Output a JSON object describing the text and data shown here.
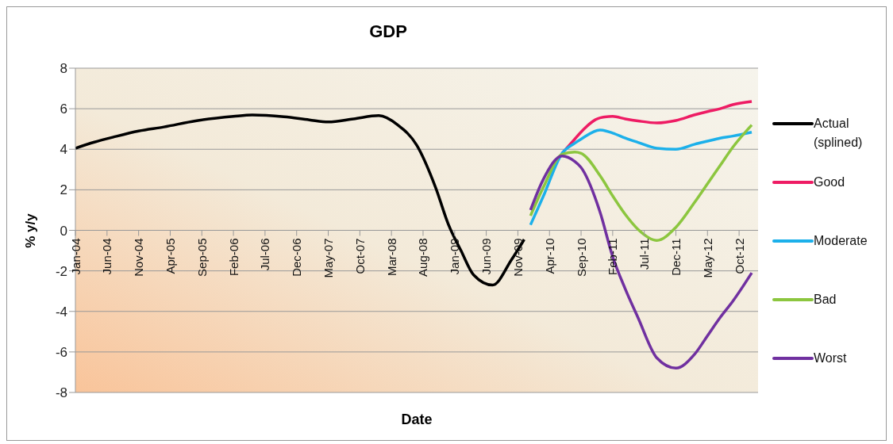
{
  "chart_data": {
    "type": "line",
    "title": "GDP",
    "xlabel": "Date",
    "ylabel": "% y/y",
    "legend": "right",
    "grid": "y",
    "xlim": [
      "2004-01",
      "2013-01"
    ],
    "ylim": [
      -8,
      8
    ],
    "yticks": [
      -8,
      -6,
      -4,
      -2,
      0,
      2,
      4,
      6,
      8
    ],
    "xticks": [
      {
        "value": "2004-01",
        "label": "Jan-04"
      },
      {
        "value": "2004-06",
        "label": "Jun-04"
      },
      {
        "value": "2004-11",
        "label": "Nov-04"
      },
      {
        "value": "2005-04",
        "label": "Apr-05"
      },
      {
        "value": "2005-09",
        "label": "Sep-05"
      },
      {
        "value": "2006-02",
        "label": "Feb-06"
      },
      {
        "value": "2006-07",
        "label": "Jul-06"
      },
      {
        "value": "2006-12",
        "label": "Dec-06"
      },
      {
        "value": "2007-05",
        "label": "May-07"
      },
      {
        "value": "2007-10",
        "label": "Oct-07"
      },
      {
        "value": "2008-03",
        "label": "Mar-08"
      },
      {
        "value": "2008-08",
        "label": "Aug-08"
      },
      {
        "value": "2009-01",
        "label": "Jan-09"
      },
      {
        "value": "2009-06",
        "label": "Jun-09"
      },
      {
        "value": "2009-11",
        "label": "Nov-09"
      },
      {
        "value": "2010-04",
        "label": "Apr-10"
      },
      {
        "value": "2010-09",
        "label": "Sep-10"
      },
      {
        "value": "2011-02",
        "label": "Feb-11"
      },
      {
        "value": "2011-07",
        "label": "Jul-11"
      },
      {
        "value": "2011-12",
        "label": "Dec-11"
      },
      {
        "value": "2012-05",
        "label": "May-12"
      },
      {
        "value": "2012-10",
        "label": "Oct-12"
      }
    ],
    "x": [
      "2010-01",
      "2010-03",
      "2010-06",
      "2010-08",
      "2010-09",
      "2010-12",
      "2011-02",
      "2011-04",
      "2011-06",
      "2011-09",
      "2011-12",
      "2012-03",
      "2012-05",
      "2012-07",
      "2012-09",
      "2012-12"
    ],
    "series": [
      {
        "name": "Actual (splined)",
        "color": "#000000",
        "x": [
          "2004-01",
          "2004-04",
          "2004-07",
          "2004-11",
          "2005-03",
          "2005-08",
          "2006-02",
          "2006-05",
          "2006-10",
          "2007-02",
          "2007-05",
          "2007-09",
          "2008-01",
          "2008-04",
          "2008-07",
          "2008-10",
          "2008-12",
          "2009-02",
          "2009-04",
          "2009-07",
          "2009-10",
          "2009-12"
        ],
        "values": [
          4.05,
          4.35,
          4.6,
          4.9,
          5.1,
          5.4,
          5.62,
          5.69,
          5.6,
          5.45,
          5.35,
          5.5,
          5.66,
          5.2,
          4.2,
          2.1,
          0.3,
          -1.0,
          -2.2,
          -2.7,
          -1.45,
          -0.45
        ]
      },
      {
        "name": "Good",
        "color": "#ee1c64",
        "x": [
          "2010-06",
          "2010-08",
          "2010-09",
          "2010-12",
          "2011-02",
          "2011-04",
          "2011-06",
          "2011-09",
          "2011-12",
          "2012-03",
          "2012-05",
          "2012-07",
          "2012-09",
          "2012-12"
        ],
        "values": [
          3.8,
          4.5,
          4.85,
          5.55,
          5.62,
          5.5,
          5.4,
          5.3,
          5.42,
          5.7,
          5.86,
          6.0,
          6.2,
          6.36
        ]
      },
      {
        "name": "Moderate",
        "color": "#1cb0ea",
        "values": [
          0.27,
          1.66,
          3.8,
          4.3,
          4.5,
          4.95,
          4.8,
          4.55,
          4.34,
          4.05,
          4.0,
          4.25,
          4.4,
          4.55,
          4.65,
          4.84
        ]
      },
      {
        "name": "Bad",
        "color": "#8cc63f",
        "values": [
          0.72,
          2.1,
          3.75,
          3.86,
          3.8,
          2.7,
          1.7,
          0.78,
          0.05,
          -0.5,
          0.15,
          1.4,
          2.3,
          3.2,
          4.1,
          5.2
        ]
      },
      {
        "name": "Worst",
        "color": "#7030a0",
        "values": [
          1.0,
          2.5,
          3.67,
          3.4,
          3.1,
          0.9,
          -1.3,
          -2.9,
          -4.3,
          -6.3,
          -6.8,
          -6.1,
          -5.2,
          -4.3,
          -3.5,
          -2.1
        ]
      }
    ]
  }
}
